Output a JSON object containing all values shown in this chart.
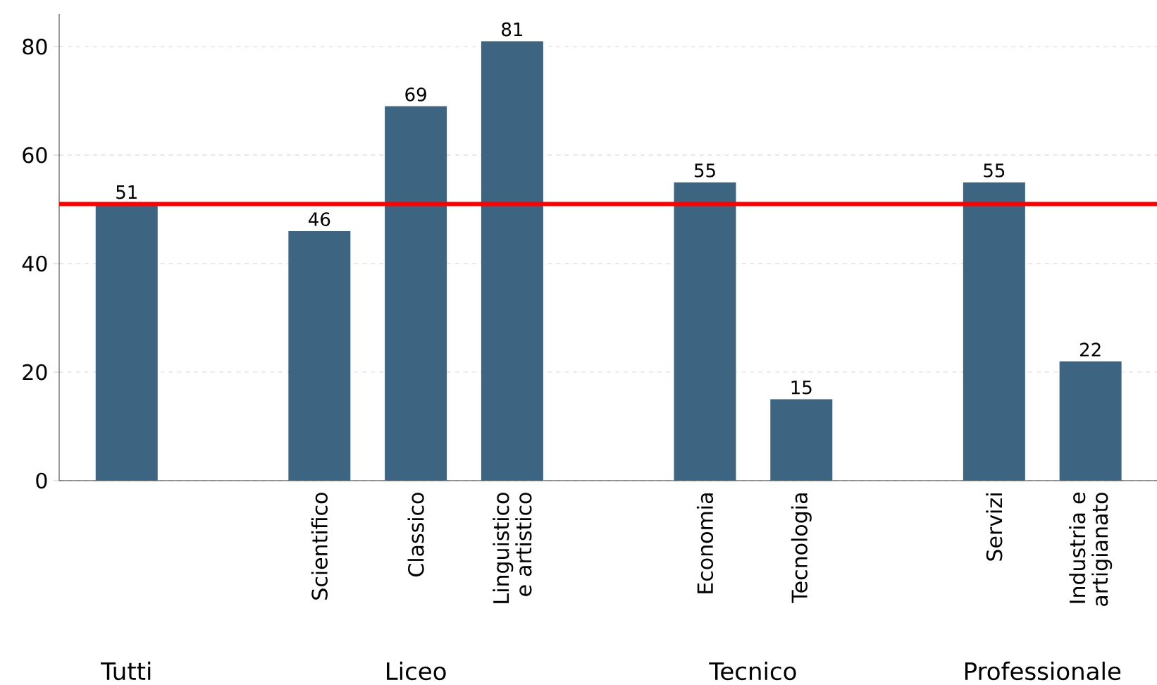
{
  "chart_data": {
    "type": "bar",
    "categories": [
      null,
      null,
      "Scientifico",
      "Classico",
      "Linguistico e artistico",
      null,
      "Economia",
      "Tecnologia",
      null,
      "Servizi",
      "Industria e artigianato"
    ],
    "values": [
      51,
      null,
      46,
      69,
      81,
      null,
      55,
      15,
      null,
      55,
      22
    ],
    "color": "#3d6480",
    "ylim": [
      0,
      86
    ],
    "yticks": [
      0,
      20,
      40,
      60,
      80
    ],
    "grid": "y",
    "data_labels": true,
    "ref_lines": [
      {
        "axis": "y",
        "value": 51,
        "color": "#ff0000"
      }
    ],
    "annotations": [
      "Tutti",
      "Liceo",
      "Tecnico",
      "Professionale"
    ]
  }
}
